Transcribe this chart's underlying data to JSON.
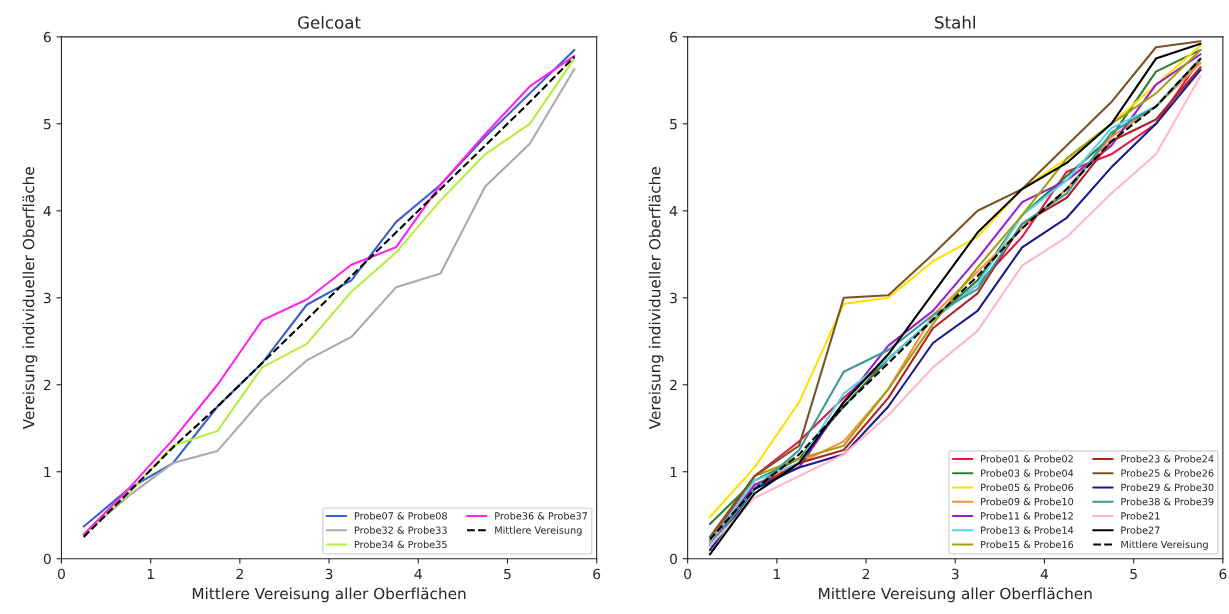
{
  "chart_data": [
    {
      "type": "line",
      "title": "Gelcoat",
      "xlabel": "Mittlere Vereisung aller Oberflächen",
      "ylabel": "Vereisung individueller Oberfläche",
      "x": [
        0.25,
        0.75,
        1.25,
        1.75,
        2.25,
        2.75,
        3.25,
        3.75,
        4.25,
        4.75,
        5.25,
        5.75
      ],
      "xlim": [
        0,
        6
      ],
      "ylim": [
        0,
        6
      ],
      "xticks": [
        0,
        1,
        2,
        3,
        4,
        5,
        6
      ],
      "yticks": [
        0,
        1,
        2,
        3,
        4,
        5,
        6
      ],
      "grid": false,
      "legend": "bottom right",
      "marker": "none",
      "series": [
        {
          "name": "Probe07 & Probe08",
          "color": "#3a5fcd",
          "values": [
            0.37,
            0.8,
            1.1,
            1.75,
            2.25,
            2.92,
            3.2,
            3.87,
            4.3,
            4.85,
            5.35,
            5.85
          ]
        },
        {
          "name": "Probe32 & Probe33",
          "color": "#aaaaaa",
          "values": [
            0.28,
            0.72,
            1.1,
            1.24,
            1.83,
            2.28,
            2.55,
            3.12,
            3.28,
            4.28,
            4.77,
            5.63
          ]
        },
        {
          "name": "Probe34 & Probe35",
          "color": "#b5ee3c",
          "values": [
            0.27,
            0.75,
            1.3,
            1.47,
            2.2,
            2.47,
            3.07,
            3.52,
            4.12,
            4.65,
            5.0,
            5.75
          ]
        },
        {
          "name": "Probe36 & Probe37",
          "color": "#ff22ee",
          "values": [
            0.28,
            0.8,
            1.37,
            2.0,
            2.74,
            2.98,
            3.38,
            3.58,
            4.3,
            4.88,
            5.43,
            5.78
          ]
        },
        {
          "name": "Mittlere Vereisung",
          "color": "#000000",
          "line_style": "dashed",
          "values": [
            0.25,
            0.76,
            1.28,
            1.75,
            2.25,
            2.75,
            3.25,
            3.75,
            4.25,
            4.75,
            5.25,
            5.77
          ]
        }
      ]
    },
    {
      "type": "line",
      "title": "Stahl",
      "xlabel": "Mittlere Vereisung aller Oberflächen",
      "ylabel": "Vereisung individueller Oberfläche",
      "x": [
        0.25,
        0.75,
        1.25,
        1.75,
        2.25,
        2.75,
        3.25,
        3.75,
        4.25,
        4.75,
        5.25,
        5.75
      ],
      "xlim": [
        0,
        6
      ],
      "ylim": [
        0,
        6
      ],
      "xticks": [
        0,
        1,
        2,
        3,
        4,
        5,
        6
      ],
      "yticks": [
        0,
        1,
        2,
        3,
        4,
        5,
        6
      ],
      "grid": false,
      "legend": "bottom right",
      "marker": "none",
      "series": [
        {
          "name": "Probe01 & Probe02",
          "color": "#e8174a",
          "values": [
            0.2,
            0.95,
            1.35,
            1.85,
            2.3,
            2.75,
            3.15,
            3.7,
            4.45,
            4.65,
            5.0,
            5.75
          ]
        },
        {
          "name": "Probe03 & Probe04",
          "color": "#2e7d32",
          "values": [
            0.4,
            0.9,
            1.15,
            1.75,
            2.3,
            2.75,
            3.2,
            3.95,
            4.4,
            4.85,
            5.6,
            5.85
          ]
        },
        {
          "name": "Probe05 & Probe06",
          "color": "#ffe000",
          "values": [
            0.48,
            1.05,
            1.8,
            2.93,
            3.0,
            3.42,
            3.7,
            4.25,
            4.6,
            5.0,
            5.45,
            5.9
          ]
        },
        {
          "name": "Probe09 & Probe10",
          "color": "#ff8c3a",
          "values": [
            0.2,
            0.85,
            1.1,
            1.35,
            1.95,
            2.8,
            3.3,
            3.8,
            4.25,
            4.85,
            5.2,
            5.7
          ]
        },
        {
          "name": "Probe11 & Probe12",
          "color": "#9b1fd1",
          "values": [
            0.15,
            0.85,
            1.05,
            1.8,
            2.45,
            2.85,
            3.45,
            4.1,
            4.35,
            4.75,
            5.45,
            5.8
          ]
        },
        {
          "name": "Probe13 & Probe14",
          "color": "#4fd6f0",
          "values": [
            0.18,
            0.9,
            1.1,
            1.9,
            2.3,
            2.75,
            3.15,
            3.95,
            4.35,
            4.95,
            5.2,
            5.75
          ]
        },
        {
          "name": "Probe15 & Probe16",
          "color": "#a0a010",
          "values": [
            0.25,
            0.95,
            1.15,
            1.3,
            1.95,
            2.7,
            3.35,
            3.95,
            4.6,
            5.0,
            5.35,
            5.85
          ]
        },
        {
          "name": "Probe23 & Probe24",
          "color": "#b22222",
          "values": [
            0.15,
            0.8,
            1.1,
            1.25,
            1.85,
            2.65,
            3.05,
            3.85,
            4.15,
            4.8,
            5.05,
            5.65
          ]
        },
        {
          "name": "Probe25 & Probe26",
          "color": "#7a5228",
          "values": [
            0.25,
            0.95,
            1.3,
            3.0,
            3.03,
            3.5,
            4.0,
            4.25,
            4.75,
            5.25,
            5.88,
            5.95
          ]
        },
        {
          "name": "Probe29 & Probe30",
          "color": "#1a1a8c",
          "values": [
            0.1,
            0.8,
            1.05,
            1.2,
            1.75,
            2.48,
            2.85,
            3.58,
            3.92,
            4.5,
            5.0,
            5.62
          ]
        },
        {
          "name": "Probe38 & Probe39",
          "color": "#3a9a90",
          "values": [
            0.15,
            0.8,
            1.25,
            2.15,
            2.4,
            2.8,
            3.1,
            3.85,
            4.2,
            4.9,
            5.2,
            5.75
          ]
        },
        {
          "name": "Probe21",
          "color": "#ffb6c8",
          "values": [
            0.15,
            0.7,
            0.95,
            1.2,
            1.65,
            2.2,
            2.62,
            3.37,
            3.7,
            4.2,
            4.65,
            5.55
          ]
        },
        {
          "name": "Probe27",
          "color": "#000000",
          "values": [
            0.05,
            0.75,
            1.1,
            1.8,
            2.35,
            3.05,
            3.75,
            4.25,
            4.55,
            5.0,
            5.75,
            5.92
          ]
        },
        {
          "name": "Mittlere Vereisung",
          "color": "#000000",
          "line_style": "dashed",
          "values": [
            0.22,
            0.8,
            1.2,
            1.75,
            2.25,
            2.75,
            3.25,
            3.8,
            4.25,
            4.8,
            5.2,
            5.75
          ]
        }
      ]
    }
  ]
}
